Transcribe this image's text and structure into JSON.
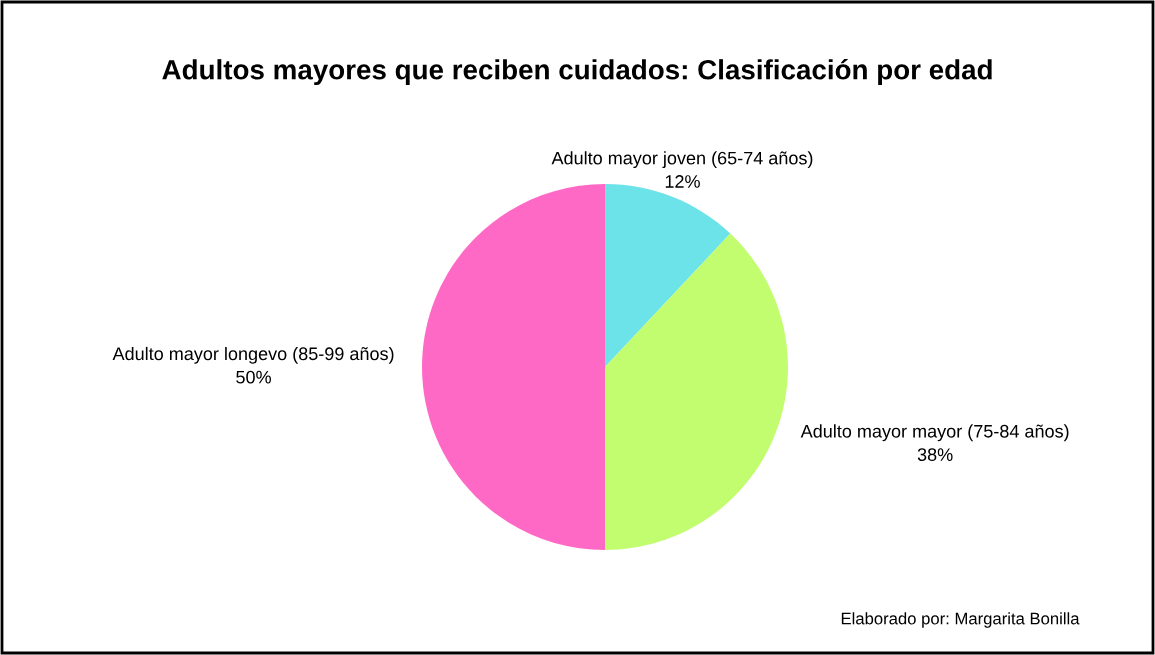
{
  "chart_data": {
    "type": "pie",
    "title": "Adultos mayores que reciben cuidados: Clasificación por edad",
    "categories": [
      "Adulto mayor joven (65-74 años)",
      "Adulto mayor mayor (75-84 años)",
      "Adulto mayor longevo (85-99 años)"
    ],
    "values": [
      12,
      38,
      50
    ],
    "colors": [
      "#6be3e8",
      "#c2fd70",
      "#ff69c6"
    ],
    "value_labels": [
      "12%",
      "38%",
      "50%"
    ],
    "annotations": [
      "Elaborado por: Margarita Bonilla"
    ],
    "legend": false
  }
}
